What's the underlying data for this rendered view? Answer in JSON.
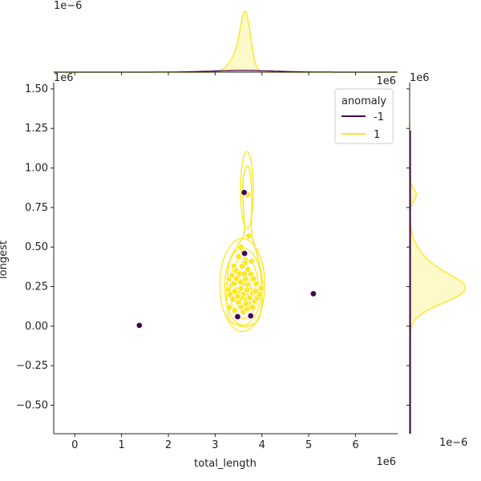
{
  "chart_data": {
    "type": "scatter",
    "title": "",
    "xlabel": "total_length",
    "ylabel": "longest",
    "xlim": [
      -450000,
      6900000
    ],
    "ylim": [
      -680000,
      1540000
    ],
    "x_ticks": [
      0,
      1000000,
      2000000,
      3000000,
      4000000,
      5000000,
      6000000
    ],
    "x_tick_labels": [
      "0",
      "1",
      "2",
      "3",
      "4",
      "5",
      "6"
    ],
    "y_ticks": [
      -500000,
      -250000,
      0,
      250000,
      500000,
      750000,
      1000000,
      1250000,
      1500000
    ],
    "y_tick_labels": [
      "−0.50",
      "−0.25",
      "0.00",
      "0.25",
      "0.50",
      "0.75",
      "1.00",
      "1.25",
      "1.50"
    ],
    "x_offset_label": "1e6",
    "y_offset_label": "1e6",
    "top_marginal_offset_label": "1e−6",
    "right_top_offset_label": "1e6",
    "right_marginal_top_label": "1e6",
    "right_marginal_offset_label": "1e−6",
    "legend": {
      "title": "anomaly",
      "placement": "top-right",
      "entries": [
        {
          "label": "-1",
          "color": "#440154"
        },
        {
          "label": "1",
          "color": "#fde725"
        }
      ]
    },
    "series": [
      {
        "name": "-1",
        "color": "#440154",
        "points": [
          [
            1380000,
            5000
          ],
          [
            5100000,
            205000
          ],
          [
            3620000,
            845000
          ],
          [
            3630000,
            460000
          ],
          [
            3480000,
            60000
          ],
          [
            3760000,
            65000
          ]
        ]
      },
      {
        "name": "1",
        "color": "#fde725",
        "points": [
          [
            3700000,
            830000
          ],
          [
            3720000,
            570000
          ],
          [
            3600000,
            470000
          ],
          [
            3500000,
            440000
          ],
          [
            3550000,
            500000
          ],
          [
            3650000,
            420000
          ],
          [
            3400000,
            380000
          ],
          [
            3450000,
            350000
          ],
          [
            3300000,
            300000
          ],
          [
            3350000,
            260000
          ],
          [
            3280000,
            230000
          ],
          [
            3320000,
            200000
          ],
          [
            3380000,
            170000
          ],
          [
            3300000,
            120000
          ],
          [
            3420000,
            100000
          ],
          [
            3500000,
            150000
          ],
          [
            3560000,
            120000
          ],
          [
            3600000,
            90000
          ],
          [
            3680000,
            110000
          ],
          [
            3720000,
            140000
          ],
          [
            3800000,
            120000
          ],
          [
            3850000,
            160000
          ],
          [
            3900000,
            180000
          ],
          [
            3950000,
            200000
          ],
          [
            3980000,
            240000
          ],
          [
            3880000,
            270000
          ],
          [
            3820000,
            300000
          ],
          [
            3760000,
            330000
          ],
          [
            3700000,
            360000
          ],
          [
            3640000,
            400000
          ],
          [
            3580000,
            380000
          ],
          [
            3520000,
            330000
          ],
          [
            3460000,
            300000
          ],
          [
            3400000,
            270000
          ],
          [
            3450000,
            230000
          ],
          [
            3500000,
            210000
          ],
          [
            3550000,
            240000
          ],
          [
            3600000,
            270000
          ],
          [
            3650000,
            300000
          ],
          [
            3700000,
            260000
          ],
          [
            3750000,
            230000
          ],
          [
            3800000,
            210000
          ],
          [
            3700000,
            190000
          ],
          [
            3650000,
            170000
          ],
          [
            3600000,
            200000
          ],
          [
            3550000,
            180000
          ],
          [
            3480000,
            190000
          ],
          [
            3420000,
            220000
          ],
          [
            3360000,
            320000
          ],
          [
            3620000,
            330000
          ],
          [
            3680000,
            230000
          ],
          [
            3780000,
            410000
          ],
          [
            3860000,
            220000
          ],
          [
            3540000,
            280000
          ],
          [
            3740000,
            180000
          ],
          [
            3660000,
            140000
          ]
        ]
      }
    ],
    "kde_level_count": 5,
    "kde_contour_color": "#fde725",
    "x_marginal_color": "#fde725",
    "y_marginal_color": "#fde725",
    "outlier_marginal_color": "#440154",
    "marginal_peak_x": 3650000,
    "marginal_peak_y": 230000,
    "marginal_secondary_peak_y": 830000
  }
}
